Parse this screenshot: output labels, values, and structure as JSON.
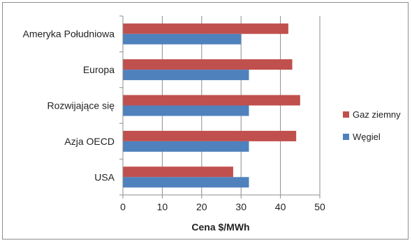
{
  "chart_data": {
    "type": "bar",
    "orientation": "horizontal",
    "categories": [
      "Ameryka Południowa",
      "Europa",
      "Rozwijające się",
      "Azja OECD",
      "USA"
    ],
    "series": [
      {
        "name": "Gaz ziemny",
        "color": "#c0504d",
        "values": [
          42,
          43,
          45,
          44,
          28
        ]
      },
      {
        "name": "Węgiel",
        "color": "#4f81bd",
        "values": [
          30,
          32,
          32,
          32,
          32
        ]
      }
    ],
    "xlabel": "Cena $/MWh",
    "ylabel": "",
    "xlim": [
      0,
      50
    ],
    "xticks": [
      "0",
      "10",
      "20",
      "30",
      "40",
      "50"
    ],
    "grid": true,
    "legend_position": "right"
  }
}
